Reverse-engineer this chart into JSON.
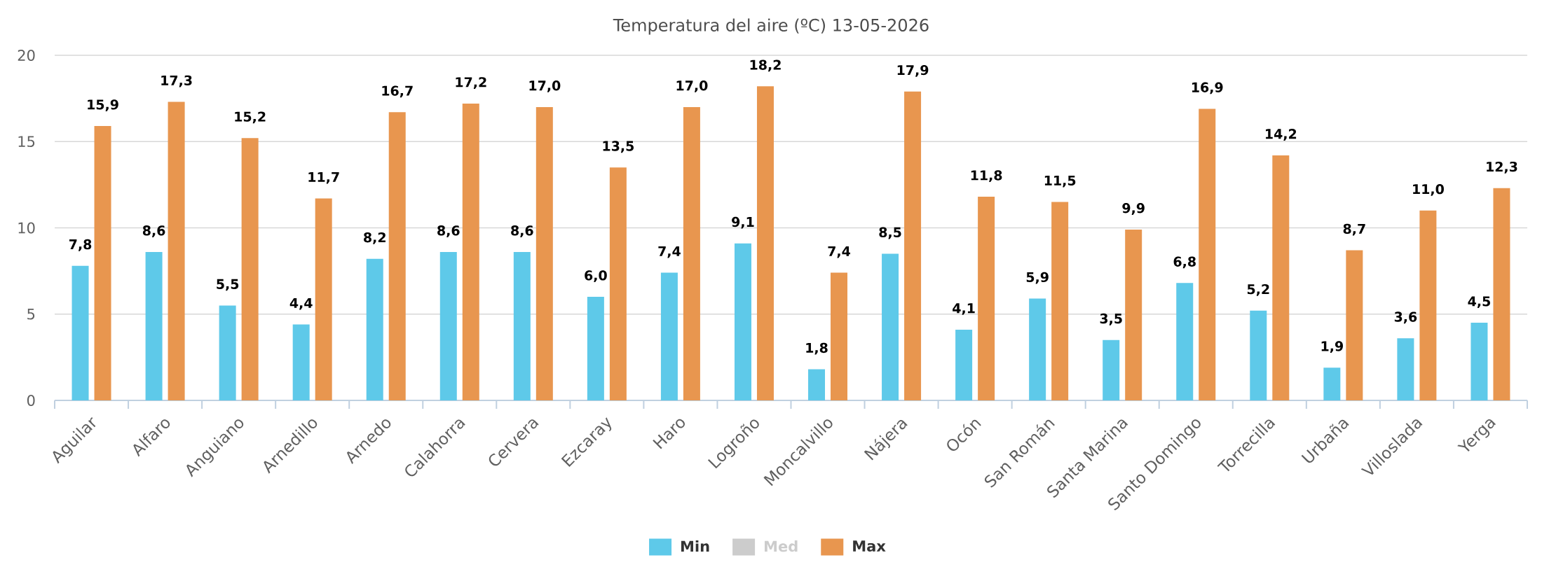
{
  "chart_data": {
    "type": "bar",
    "title": "Temperatura del aire (ºC) 13-05-2026",
    "categories": [
      "Aguilar",
      "Alfaro",
      "Anguiano",
      "Arnedillo",
      "Arnedo",
      "Calahorra",
      "Cervera",
      "Ezcaray",
      "Haro",
      "Logroño",
      "Moncalvillo",
      "Nájera",
      "Ocón",
      "San Román",
      "Santa Marina",
      "Santo Domingo",
      "Torrecilla",
      "Urbaña",
      "Villoslada",
      "Yerga"
    ],
    "series": [
      {
        "name": "Min",
        "color": "#5ec9e9",
        "values": [
          7.8,
          8.6,
          5.5,
          4.4,
          8.2,
          8.6,
          8.6,
          6.0,
          7.4,
          9.1,
          1.8,
          8.5,
          4.1,
          5.9,
          3.5,
          6.8,
          5.2,
          1.9,
          3.6,
          4.5
        ],
        "value_labels": [
          "7,8",
          "8,6",
          "5,5",
          "4,4",
          "8,2",
          "8,6",
          "8,6",
          "6,0",
          "7,4",
          "9,1",
          "1,8",
          "8,5",
          "4,1",
          "5,9",
          "3,5",
          "6,8",
          "5,2",
          "1,9",
          "3,6",
          "4,5"
        ]
      },
      {
        "name": "Med",
        "color": "#cccccc",
        "values": [
          null,
          null,
          null,
          null,
          null,
          null,
          null,
          null,
          null,
          null,
          null,
          null,
          null,
          null,
          null,
          null,
          null,
          null,
          null,
          null
        ]
      },
      {
        "name": "Max",
        "color": "#e8964f",
        "values": [
          15.9,
          17.3,
          15.2,
          11.7,
          16.7,
          17.2,
          17.0,
          13.5,
          17.0,
          18.2,
          7.4,
          17.9,
          11.8,
          11.5,
          9.9,
          16.9,
          14.2,
          8.7,
          11.0,
          12.3
        ],
        "value_labels": [
          "15,9",
          "17,3",
          "15,2",
          "11,7",
          "16,7",
          "17,2",
          "17,0",
          "13,5",
          "17,0",
          "18,2",
          "7,4",
          "17,9",
          "11,8",
          "11,5",
          "9,9",
          "16,9",
          "14,2",
          "8,7",
          "11,0",
          "12,3"
        ]
      }
    ],
    "ylim": [
      0,
      20
    ],
    "yticks": [
      0,
      5,
      10,
      15,
      20
    ],
    "grid": "y",
    "legend": "bottom"
  }
}
